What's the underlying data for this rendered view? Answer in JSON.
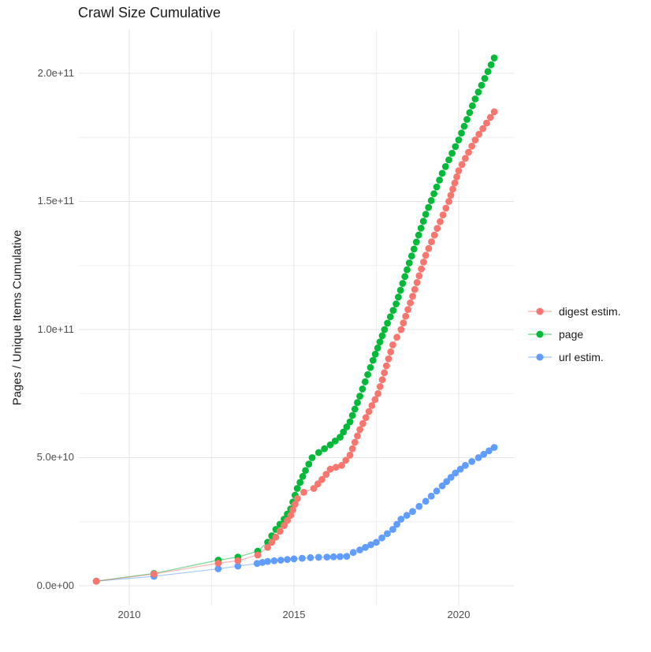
{
  "title": "Crawl Size Cumulative",
  "y_axis_title": "Pages / Unique Items Cumulative",
  "colors": {
    "background": "#ffffff",
    "grid_major": "#e4e4e4",
    "grid_minor": "#f1f1f1",
    "title_text": "#1a1a1a",
    "tick_text": "#4d4d4d"
  },
  "legend": {
    "items": [
      {
        "label": "digest estim.",
        "color": "#f8766d"
      },
      {
        "label": "page",
        "color": "#00ba38"
      },
      {
        "label": "url estim.",
        "color": "#619cff"
      }
    ]
  },
  "chart_data": {
    "type": "scatter",
    "title": "Crawl Size Cumulative",
    "xlabel": "",
    "ylabel": "Pages / Unique Items Cumulative",
    "xlim": [
      2008.5,
      2021.7
    ],
    "ylim": [
      -7500000000.0,
      217000000000.0
    ],
    "grid": true,
    "legend_position": "right",
    "x_ticks": [
      {
        "value": 2010,
        "label": "2010"
      },
      {
        "value": 2015,
        "label": "2015"
      },
      {
        "value": 2020,
        "label": "2020"
      }
    ],
    "y_ticks": [
      {
        "value": 0,
        "label": "0.0e+00"
      },
      {
        "value": 50000000000.0,
        "label": "5.0e+10"
      },
      {
        "value": 100000000000.0,
        "label": "1.0e+11"
      },
      {
        "value": 150000000000.0,
        "label": "1.5e+11"
      },
      {
        "value": 200000000000.0,
        "label": "2.0e+11"
      }
    ],
    "x_minor": [
      2012.5,
      2017.5
    ],
    "y_minor": [
      25000000000.0,
      75000000000.0,
      125000000000.0,
      175000000000.0
    ],
    "series": [
      {
        "name": "digest estim.",
        "color": "#f8766d",
        "dense_from": 2014.1,
        "points": [
          [
            2009.0,
            1800000000.0
          ],
          [
            2010.75,
            4600000000.0
          ],
          [
            2012.7,
            8800000000.0
          ],
          [
            2013.3,
            9800000000.0
          ],
          [
            2013.9,
            12000000000.0
          ],
          [
            2014.2,
            15000000000.0
          ],
          [
            2014.45,
            19000000000.0
          ],
          [
            2014.7,
            23500000000.0
          ],
          [
            2014.9,
            27500000000.0
          ],
          [
            2015.1,
            34000000000.0
          ],
          [
            2015.3,
            36500000000.0
          ],
          [
            2015.6,
            38000000000.0
          ],
          [
            2015.85,
            41500000000.0
          ],
          [
            2016.1,
            45500000000.0
          ],
          [
            2016.45,
            47000000000.0
          ],
          [
            2016.7,
            51000000000.0
          ],
          [
            2017.0,
            61000000000.0
          ],
          [
            2017.55,
            75000000000.0
          ],
          [
            2018.0,
            94000000000.0
          ],
          [
            2018.25,
            100000000000.0
          ],
          [
            2018.6,
            113000000000.0
          ],
          [
            2019.0,
            129000000000.0
          ],
          [
            2019.7,
            150000000000.0
          ],
          [
            2020.0,
            162000000000.0
          ],
          [
            2020.5,
            174000000000.0
          ],
          [
            2021.08,
            185000000000.0
          ]
        ]
      },
      {
        "name": "page",
        "color": "#00ba38",
        "dense_from": 2014.1,
        "points": [
          [
            2009.0,
            1800000000.0
          ],
          [
            2010.75,
            4800000000.0
          ],
          [
            2012.7,
            10000000000.0
          ],
          [
            2013.3,
            11200000000.0
          ],
          [
            2013.9,
            13500000000.0
          ],
          [
            2014.2,
            17000000000.0
          ],
          [
            2014.45,
            22000000000.0
          ],
          [
            2014.7,
            26000000000.0
          ],
          [
            2014.9,
            30000000000.0
          ],
          [
            2015.1,
            38000000000.0
          ],
          [
            2015.35,
            45000000000.0
          ],
          [
            2015.55,
            50000000000.0
          ],
          [
            2015.75,
            52000000000.0
          ],
          [
            2016.1,
            55000000000.0
          ],
          [
            2016.4,
            58000000000.0
          ],
          [
            2016.7,
            64000000000.0
          ],
          [
            2017.0,
            74000000000.0
          ],
          [
            2017.4,
            88000000000.0
          ],
          [
            2017.75,
            100000000000.0
          ],
          [
            2018.1,
            110000000000.0
          ],
          [
            2018.5,
            126000000000.0
          ],
          [
            2019.0,
            145000000000.0
          ],
          [
            2019.5,
            161000000000.0
          ],
          [
            2020.0,
            174000000000.0
          ],
          [
            2020.5,
            190000000000.0
          ],
          [
            2021.08,
            206000000000.0
          ]
        ]
      },
      {
        "name": "url estim.",
        "color": "#619cff",
        "dense_from": 2013.85,
        "points": [
          [
            2009.0,
            1800000000.0
          ],
          [
            2010.75,
            3700000000.0
          ],
          [
            2012.7,
            6600000000.0
          ],
          [
            2013.3,
            7700000000.0
          ],
          [
            2013.88,
            8700000000.0
          ],
          [
            2014.2,
            9500000000.0
          ],
          [
            2014.6,
            10000000000.0
          ],
          [
            2015.0,
            10500000000.0
          ],
          [
            2015.5,
            11000000000.0
          ],
          [
            2016.0,
            11200000000.0
          ],
          [
            2016.6,
            11500000000.0
          ],
          [
            2016.8,
            13000000000.0
          ],
          [
            2017.0,
            14000000000.0
          ],
          [
            2017.5,
            17000000000.0
          ],
          [
            2018.0,
            22000000000.0
          ],
          [
            2018.25,
            26000000000.0
          ],
          [
            2018.6,
            29000000000.0
          ],
          [
            2019.0,
            33000000000.0
          ],
          [
            2019.5,
            39000000000.0
          ],
          [
            2019.9,
            44000000000.0
          ],
          [
            2020.2,
            47000000000.0
          ],
          [
            2020.6,
            50000000000.0
          ],
          [
            2021.08,
            54000000000.0
          ]
        ]
      }
    ],
    "render": {
      "dot_radius": 4.4,
      "dot_spacing_px": 9,
      "line_opacity": 0.55
    }
  }
}
